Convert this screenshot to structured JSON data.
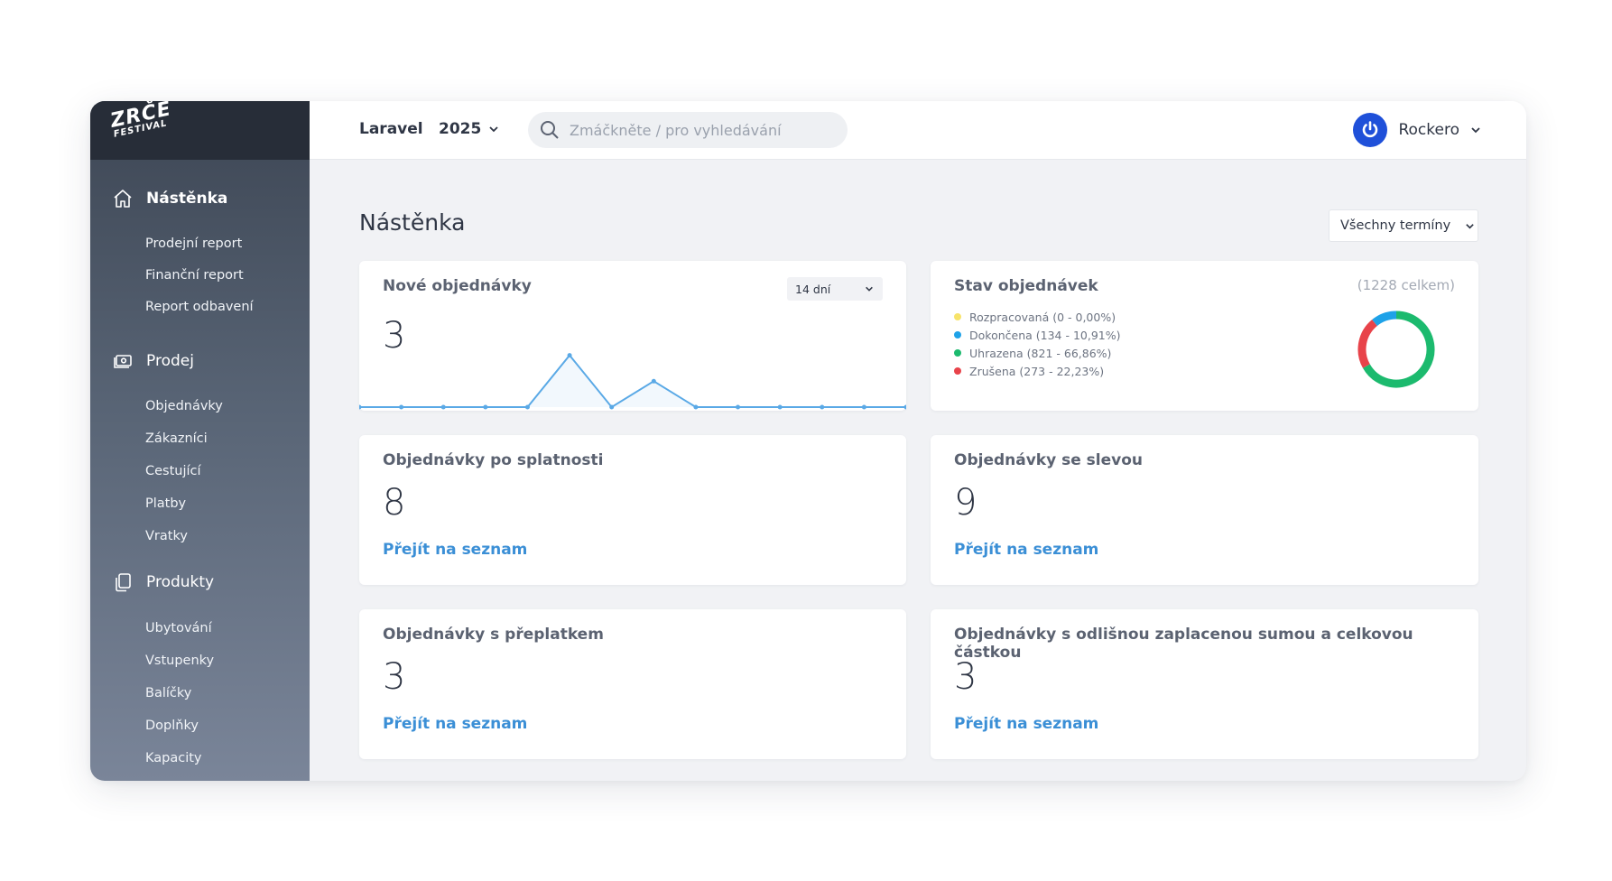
{
  "logo": {
    "line1": "ZRČE",
    "line2": "FESTIVAL"
  },
  "sidebar": {
    "sections": [
      {
        "label": "Nástěnka",
        "icon": "home-icon",
        "active": true,
        "items": [
          "Prodejní report",
          "Finanční report",
          "Report odbavení"
        ]
      },
      {
        "label": "Prodej",
        "icon": "cash-icon",
        "items": [
          "Objednávky",
          "Zákazníci",
          "Cestující",
          "Platby",
          "Vratky"
        ]
      },
      {
        "label": "Produkty",
        "icon": "copy-icon",
        "items": [
          "Ubytování",
          "Vstupenky",
          "Balíčky",
          "Doplňky",
          "Kapacity"
        ]
      }
    ]
  },
  "topbar": {
    "brand": "Laravel",
    "year": "2025",
    "search_placeholder": "Zmáčkněte / pro vyhledávání",
    "user": "Rockero"
  },
  "main": {
    "title": "Nástěnka",
    "term_filter": "Všechny termíny",
    "link_label": "Přejít na seznam",
    "cards": {
      "new_orders": {
        "title": "Nové objednávky",
        "value": "3",
        "range": "14 dní"
      },
      "order_status": {
        "title": "Stav objednávek",
        "total": "(1228 celkem)",
        "legend": [
          {
            "label": "Rozpracovaná (0 - 0,00%)",
            "color": "#f7e36a"
          },
          {
            "label": "Dokončena (134 - 10,91%)",
            "color": "#1ea2e8"
          },
          {
            "label": "Uhrazena (821 - 66,86%)",
            "color": "#1cba6e"
          },
          {
            "label": "Zrušena (273 - 22,23%)",
            "color": "#e8434a"
          }
        ]
      },
      "overdue": {
        "title": "Objednávky po splatnosti",
        "value": "8"
      },
      "discount": {
        "title": "Objednávky se slevou",
        "value": "9"
      },
      "overpaid": {
        "title": "Objednávky s přeplatkem",
        "value": "3"
      },
      "mismatch": {
        "title": "Objednávky s odlišnou zaplacenou sumou a celkovou částkou",
        "value": "3"
      }
    }
  },
  "chart_data": [
    {
      "type": "area",
      "title": "",
      "x": [
        1,
        2,
        3,
        4,
        5,
        6,
        7,
        8,
        9,
        10,
        11,
        12,
        13,
        14
      ],
      "values": [
        0,
        0,
        0,
        0,
        0,
        2,
        0,
        1,
        0,
        0,
        0,
        0,
        0,
        0
      ],
      "ylim": [
        0,
        2.3
      ],
      "color": "#5aa9e6"
    },
    {
      "type": "pie",
      "style": "donut",
      "categories": [
        "Rozpracovaná",
        "Dokončena",
        "Uhrazena",
        "Zrušena"
      ],
      "values": [
        0,
        134,
        821,
        273
      ],
      "colors": [
        "#f7e36a",
        "#1ea2e8",
        "#1cba6e",
        "#e8434a"
      ]
    }
  ]
}
